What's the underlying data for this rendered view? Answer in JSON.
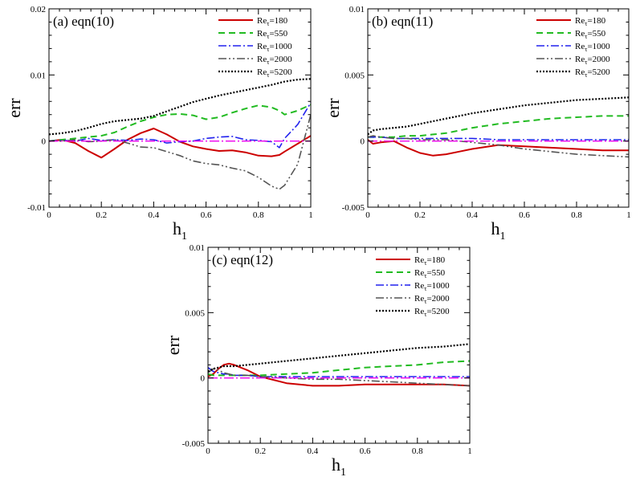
{
  "chart_data": [
    {
      "type": "line",
      "title": "(a) eqn(10)",
      "xlabel": "h",
      "xlabel_sub": "1",
      "ylabel": "err",
      "xlim": [
        0,
        1
      ],
      "ylim": [
        -0.01,
        0.02
      ],
      "xticks": [
        0,
        0.2,
        0.4,
        0.6,
        0.8,
        1
      ],
      "xtick_labels": [
        "0",
        "0.2",
        "0.4",
        "0.6",
        "0.8",
        "1"
      ],
      "yticks": [
        -0.01,
        0,
        0.01,
        0.02
      ],
      "ytick_labels": [
        "-0.01",
        "0",
        "0.01",
        "0.02"
      ],
      "legend_position": "top-right",
      "x": [
        0,
        0.05,
        0.1,
        0.15,
        0.2,
        0.25,
        0.3,
        0.35,
        0.4,
        0.45,
        0.5,
        0.55,
        0.6,
        0.65,
        0.7,
        0.75,
        0.8,
        0.85,
        0.88,
        0.9,
        0.95,
        1
      ],
      "series": [
        {
          "name": "Re",
          "sub": "τ",
          "suffix": "=180",
          "color": "#cc0000",
          "dash": "",
          "width": 2,
          "values": [
            0,
            0.0002,
            -0.0003,
            -0.0015,
            -0.0025,
            -0.0012,
            0.0002,
            0.0012,
            0.0019,
            0.001,
            -0.0001,
            -0.0008,
            -0.0012,
            -0.0015,
            -0.0014,
            -0.0017,
            -0.0022,
            -0.0023,
            -0.0021,
            -0.0016,
            -0.0004,
            0.0008
          ]
        },
        {
          "name": "Re",
          "sub": "τ",
          "suffix": "=550",
          "color": "#22bb22",
          "dash": "8,5",
          "width": 2,
          "values": [
            0,
            0.0002,
            0.0004,
            0.0006,
            0.0008,
            0.0013,
            0.0022,
            0.003,
            0.0036,
            0.004,
            0.0041,
            0.0039,
            0.0033,
            0.0036,
            0.0043,
            0.0049,
            0.0054,
            0.0051,
            0.0046,
            0.004,
            0.0046,
            0.0055
          ]
        },
        {
          "name": "Re",
          "sub": "τ",
          "suffix": "=1000",
          "color": "#2222ee",
          "dash": "10,3,2,3",
          "width": 1.6,
          "values": [
            0,
            0.0001,
            0,
            0.0004,
            0.0001,
            0.0002,
            0.0001,
            0.0003,
            0.0002,
            -0.0003,
            -0.0001,
            0,
            0.0004,
            0.0006,
            0.0007,
            0.0002,
            0.0001,
            -0.0001,
            -0.001,
            0.0004,
            0.0025,
            0.0058
          ]
        },
        {
          "name": "Re",
          "sub": "τ",
          "suffix": "=2000",
          "color": "#555555",
          "dash": "10,3,2,3,2,3",
          "width": 1.6,
          "values": [
            0,
            0,
            0.0002,
            -0.0001,
            0,
            0.0002,
            -0.0003,
            -0.0009,
            -0.001,
            -0.0016,
            -0.0022,
            -0.003,
            -0.0034,
            -0.0036,
            -0.0041,
            -0.0045,
            -0.0055,
            -0.0068,
            -0.0073,
            -0.0067,
            -0.0035,
            0.004
          ]
        },
        {
          "name": "Re",
          "sub": "τ",
          "suffix": "=5200",
          "color": "#000000",
          "dash": "2,2",
          "width": 2.2,
          "values": [
            0.001,
            0.0012,
            0.0015,
            0.002,
            0.0026,
            0.003,
            0.0032,
            0.0034,
            0.0038,
            0.0045,
            0.0052,
            0.0059,
            0.0064,
            0.0069,
            0.0073,
            0.0077,
            0.0081,
            0.0085,
            0.0088,
            0.009,
            0.0093,
            0.0094
          ]
        },
        {
          "name": "zero-line",
          "legend": false,
          "color": "#ee00ee",
          "dash": "12,3,2,3",
          "width": 1.3,
          "values": [
            0,
            0,
            0,
            0,
            0,
            0,
            0,
            0,
            0,
            0,
            0,
            0,
            0,
            0,
            0,
            0,
            0,
            0,
            0,
            0,
            0,
            0
          ]
        }
      ]
    },
    {
      "type": "line",
      "title": "(b) eqn(11)",
      "xlabel": "h",
      "xlabel_sub": "1",
      "ylabel": "err",
      "xlim": [
        0,
        1
      ],
      "ylim": [
        -0.005,
        0.01
      ],
      "xticks": [
        0,
        0.2,
        0.4,
        0.6,
        0.8,
        1
      ],
      "xtick_labels": [
        "0",
        "0.2",
        "0.4",
        "0.6",
        "0.8",
        "1"
      ],
      "yticks": [
        -0.005,
        0,
        0.005,
        0.01
      ],
      "ytick_labels": [
        "-0.005",
        "0",
        "0.005",
        "0.01"
      ],
      "legend_position": "top-right",
      "x": [
        0,
        0.02,
        0.05,
        0.1,
        0.15,
        0.2,
        0.25,
        0.3,
        0.35,
        0.4,
        0.5,
        0.6,
        0.7,
        0.8,
        0.9,
        1
      ],
      "series": [
        {
          "name": "Re",
          "sub": "τ",
          "suffix": "=180",
          "color": "#cc0000",
          "dash": "",
          "width": 2,
          "values": [
            0.0001,
            -0.0002,
            -0.0001,
            0,
            -0.0005,
            -0.0009,
            -0.0011,
            -0.001,
            -0.0008,
            -0.0006,
            -0.0003,
            -0.0004,
            -0.0005,
            -0.0006,
            -0.0007,
            -0.0007
          ]
        },
        {
          "name": "Re",
          "sub": "τ",
          "suffix": "=550",
          "color": "#22bb22",
          "dash": "8,5",
          "width": 2,
          "values": [
            0.0003,
            0.0003,
            0.0003,
            0.0003,
            0.0004,
            0.0004,
            0.0005,
            0.0006,
            0.0008,
            0.001,
            0.0013,
            0.0015,
            0.0017,
            0.0018,
            0.0019,
            0.0019
          ]
        },
        {
          "name": "Re",
          "sub": "τ",
          "suffix": "=1000",
          "color": "#2222ee",
          "dash": "10,3,2,3",
          "width": 1.6,
          "values": [
            0.0003,
            0.0003,
            0.0003,
            0.0002,
            0.0002,
            0.0002,
            0.0002,
            0.0002,
            0.0002,
            0.0002,
            0.0001,
            0.0001,
            0.0001,
            0.0001,
            0.0001,
            0.0001
          ]
        },
        {
          "name": "Re",
          "sub": "τ",
          "suffix": "=2000",
          "color": "#555555",
          "dash": "10,3,2,3,2,3",
          "width": 1.6,
          "values": [
            0.0003,
            0.0004,
            0.0003,
            0.0002,
            0.0002,
            0.0001,
            0.0001,
            0.0001,
            0,
            -0.0001,
            -0.0003,
            -0.0006,
            -0.0008,
            -0.001,
            -0.0011,
            -0.0012
          ]
        },
        {
          "name": "Re",
          "sub": "τ",
          "suffix": "=5200",
          "color": "#000000",
          "dash": "2,2",
          "width": 2.2,
          "values": [
            0.0005,
            0.0008,
            0.0009,
            0.001,
            0.0011,
            0.0013,
            0.0015,
            0.0017,
            0.0019,
            0.0021,
            0.0024,
            0.0027,
            0.0029,
            0.0031,
            0.0032,
            0.0033
          ]
        },
        {
          "name": "zero-line",
          "legend": false,
          "color": "#ee00ee",
          "dash": "12,3,2,3",
          "width": 1.3,
          "values": [
            0,
            0,
            0,
            0,
            0,
            0,
            0,
            0,
            0,
            0,
            0,
            0,
            0,
            0,
            0,
            0
          ]
        }
      ]
    },
    {
      "type": "line",
      "title": "(c) eqn(12)",
      "xlabel": "h",
      "xlabel_sub": "1",
      "ylabel": "err",
      "xlim": [
        0,
        1
      ],
      "ylim": [
        -0.005,
        0.01
      ],
      "xticks": [
        0,
        0.2,
        0.4,
        0.6,
        0.8,
        1
      ],
      "xtick_labels": [
        "0",
        "0.2",
        "0.4",
        "0.6",
        "0.8",
        "1"
      ],
      "yticks": [
        -0.005,
        0,
        0.005,
        0.01
      ],
      "ytick_labels": [
        "-0.005",
        "0",
        "0.005",
        "0.01"
      ],
      "legend_position": "top-right",
      "x": [
        0,
        0.02,
        0.04,
        0.06,
        0.08,
        0.1,
        0.15,
        0.2,
        0.3,
        0.4,
        0.5,
        0.6,
        0.7,
        0.8,
        0.9,
        1
      ],
      "series": [
        {
          "name": "Re",
          "sub": "τ",
          "suffix": "=180",
          "color": "#cc0000",
          "dash": "",
          "width": 2,
          "values": [
            0.0001,
            0.0003,
            0.0007,
            0.001,
            0.0011,
            0.001,
            0.0006,
            0.0001,
            -0.0004,
            -0.0006,
            -0.0006,
            -0.0005,
            -0.0005,
            -0.0005,
            -0.0005,
            -0.0006
          ]
        },
        {
          "name": "Re",
          "sub": "τ",
          "suffix": "=550",
          "color": "#22bb22",
          "dash": "8,5",
          "width": 2,
          "values": [
            0.0003,
            0.0002,
            0.0002,
            0.0002,
            0.0002,
            0.0002,
            0.0002,
            0.0002,
            0.0003,
            0.0004,
            0.0006,
            0.0008,
            0.0009,
            0.001,
            0.0012,
            0.0013
          ]
        },
        {
          "name": "Re",
          "sub": "τ",
          "suffix": "=1000",
          "color": "#2222ee",
          "dash": "10,3,2,3",
          "width": 1.6,
          "values": [
            0.0008,
            0.0005,
            0.0004,
            0.0003,
            0.0003,
            0.0002,
            0.0002,
            0.0001,
            0.0001,
            0.0001,
            0.0001,
            0.0001,
            0.0001,
            0.0001,
            0.0001,
            0.0001
          ]
        },
        {
          "name": "Re",
          "sub": "τ",
          "suffix": "=2000",
          "color": "#555555",
          "dash": "10,3,2,3,2,3",
          "width": 1.6,
          "values": [
            0.0004,
            0.0007,
            0.0006,
            0.0004,
            0.0003,
            0.0002,
            0.0002,
            0.0001,
            0,
            -0.0001,
            -0.0001,
            -0.0002,
            -0.0003,
            -0.0004,
            -0.0005,
            -0.0006
          ]
        },
        {
          "name": "Re",
          "sub": "τ",
          "suffix": "=5200",
          "color": "#000000",
          "dash": "2,2",
          "width": 2.2,
          "values": [
            0.0005,
            0.0007,
            0.0008,
            0.0009,
            0.0009,
            0.0009,
            0.001,
            0.0011,
            0.0013,
            0.0015,
            0.0017,
            0.0019,
            0.0021,
            0.0023,
            0.0024,
            0.0026
          ]
        },
        {
          "name": "zero-line",
          "legend": false,
          "color": "#ee00ee",
          "dash": "12,3,2,3",
          "width": 1.3,
          "values": [
            0,
            0,
            0,
            0,
            0,
            0,
            0,
            0,
            0,
            0,
            0,
            0,
            0,
            0,
            0,
            0
          ]
        }
      ]
    }
  ]
}
